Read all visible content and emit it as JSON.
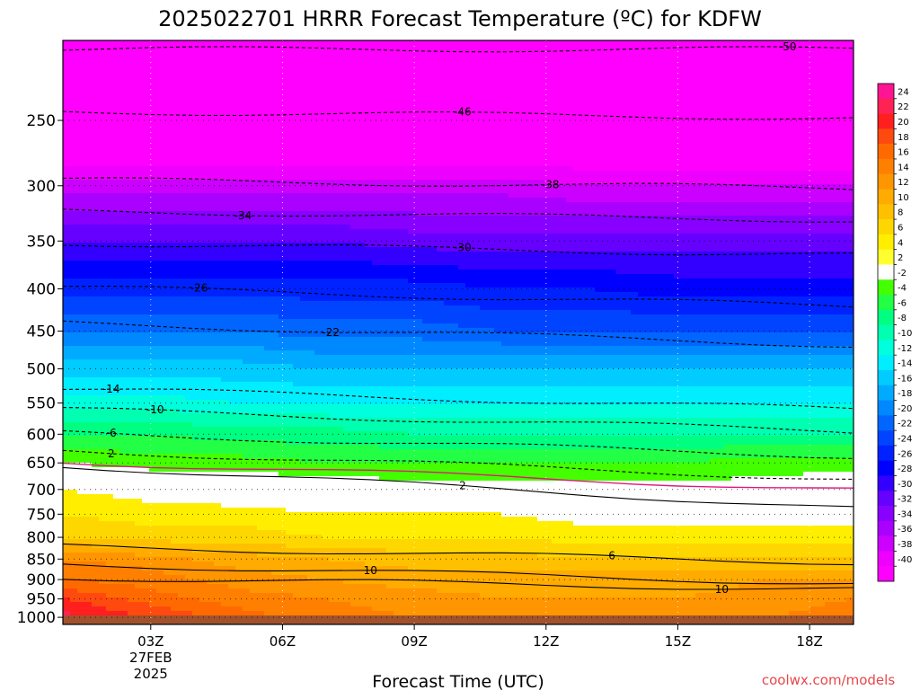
{
  "chart_data": {
    "type": "heatmap",
    "title": "2025022701 HRRR Forecast Temperature (ºC) for KDFW",
    "xlabel": "Forecast Time (UTC)",
    "ylabel": "",
    "x_hours": [
      1,
      19
    ],
    "x_ticks": [
      {
        "hour": 3,
        "lines": [
          "03Z",
          "27FEB",
          "2025"
        ]
      },
      {
        "hour": 6,
        "lines": [
          "06Z"
        ]
      },
      {
        "hour": 9,
        "lines": [
          "09Z"
        ]
      },
      {
        "hour": 12,
        "lines": [
          "12Z"
        ]
      },
      {
        "hour": 15,
        "lines": [
          "15Z"
        ]
      },
      {
        "hour": 18,
        "lines": [
          "18Z"
        ]
      }
    ],
    "y_scale": "log-pressure",
    "y_range_hpa": [
      1020,
      200
    ],
    "y_ticks": [
      "250",
      "300",
      "350",
      "400",
      "450",
      "500",
      "550",
      "600",
      "650",
      "700",
      "750",
      "800",
      "850",
      "900",
      "950",
      "1000"
    ],
    "grid": "dotted",
    "colorbar": {
      "placement": "right",
      "labels": [
        "24",
        "22",
        "20",
        "18",
        "16",
        "14",
        "12",
        "10",
        "8",
        "6",
        "4",
        "2",
        "-2",
        "-4",
        "-6",
        "-8",
        "-10",
        "-12",
        "-14",
        "-16",
        "-18",
        "-20",
        "-22",
        "-24",
        "-26",
        "-28",
        "-30",
        "-32",
        "-34",
        "-36",
        "-38",
        "-40"
      ],
      "colors": [
        "#ff1493",
        "#ff2255",
        "#ff1f1f",
        "#ff4a0f",
        "#ff6a00",
        "#ff8000",
        "#ff9500",
        "#ffab00",
        "#ffc000",
        "#ffd700",
        "#ffee00",
        "#ffff30",
        "#ffffff",
        "#44ff00",
        "#22ff44",
        "#00ff80",
        "#00ffb0",
        "#00ffdd",
        "#00eeff",
        "#00ccff",
        "#00aaff",
        "#0088ff",
        "#0066ff",
        "#0044ff",
        "#0022ff",
        "#0000ff",
        "#3300ff",
        "#6600ff",
        "#8800ff",
        "#aa00ff",
        "#cc00ff",
        "#ee00ff",
        "#ff00ff"
      ]
    },
    "ground_color": "#a0522d",
    "temperature_profile": [
      {
        "p": 1000,
        "t": [
          21,
          18,
          15,
          13,
          12,
          11,
          11,
          11,
          12,
          13
        ]
      },
      {
        "p": 950,
        "t": [
          18,
          15,
          13,
          12,
          11,
          10,
          10,
          10,
          11,
          12
        ]
      },
      {
        "p": 900,
        "t": [
          14,
          13,
          11,
          10,
          9,
          9,
          9,
          9,
          10,
          10
        ]
      },
      {
        "p": 850,
        "t": [
          12,
          11,
          9,
          8,
          7,
          7,
          6,
          6,
          6,
          6
        ]
      },
      {
        "p": 800,
        "t": [
          6,
          5,
          5,
          4,
          4,
          4,
          3,
          3,
          3,
          3
        ]
      },
      {
        "p": 750,
        "t": [
          4,
          3,
          3,
          2,
          2,
          2,
          1,
          1,
          1,
          1
        ]
      },
      {
        "p": 700,
        "t": [
          2,
          1,
          0,
          0,
          -1,
          -1,
          -1,
          -1,
          -1,
          0
        ]
      },
      {
        "p": 650,
        "t": [
          -2,
          -3,
          -3,
          -4,
          -4,
          -4,
          -4,
          -4,
          -3,
          -3
        ]
      },
      {
        "p": 600,
        "t": [
          -6,
          -6,
          -7,
          -7,
          -8,
          -8,
          -8,
          -8,
          -8,
          -8
        ]
      },
      {
        "p": 550,
        "t": [
          -11,
          -11,
          -12,
          -12,
          -12,
          -12,
          -12,
          -12,
          -12,
          -12
        ]
      },
      {
        "p": 500,
        "t": [
          -15,
          -15,
          -15,
          -16,
          -16,
          -16,
          -16,
          -16,
          -16,
          -16
        ]
      },
      {
        "p": 450,
        "t": [
          -20,
          -20,
          -20,
          -21,
          -21,
          -22,
          -22,
          -22,
          -22,
          -22
        ]
      },
      {
        "p": 400,
        "t": [
          -25,
          -25,
          -25,
          -25,
          -25,
          -26,
          -26,
          -27,
          -27,
          -27
        ]
      },
      {
        "p": 350,
        "t": [
          -30,
          -30,
          -30,
          -30,
          -31,
          -31,
          -31,
          -31,
          -31,
          -31
        ]
      },
      {
        "p": 300,
        "t": [
          -37,
          -37,
          -37,
          -37,
          -37,
          -37,
          -38,
          -38,
          -38,
          -38
        ]
      },
      {
        "p": 250,
        "t": [
          -46,
          -46,
          -46,
          -46,
          -46,
          -46,
          -46,
          -46,
          -46,
          -46
        ]
      },
      {
        "p": 200,
        "t": [
          -55,
          -55,
          -55,
          -55,
          -55,
          -55,
          -55,
          -55,
          -55,
          -55
        ]
      }
    ],
    "profile_hours": [
      1,
      3,
      5,
      7,
      9,
      11,
      13,
      15,
      17,
      19
    ],
    "contour_levels": [
      50,
      46,
      38,
      34,
      30,
      26,
      22,
      14,
      10,
      6,
      2,
      0
    ],
    "contours": [
      {
        "kind": "dashed",
        "label": "-50",
        "lhour": 17.5,
        "points": [
          [
            1,
            205
          ],
          [
            19,
            205
          ]
        ],
        "shifts": [
          0,
          0,
          0,
          0,
          0,
          0,
          0,
          0,
          0,
          0
        ]
      },
      {
        "kind": "dashed",
        "label": "-46",
        "lhour": 10.1,
        "points": [
          [
            1,
            244
          ],
          [
            19,
            248
          ]
        ],
        "shifts": [
          0,
          0,
          0,
          0,
          0,
          0,
          0,
          0,
          0,
          0
        ]
      },
      {
        "kind": "dashed",
        "label": "-38",
        "lhour": 12.1,
        "points": [
          [
            1,
            295
          ],
          [
            19,
            302
          ]
        ],
        "shifts": [
          0,
          0,
          0,
          0,
          0,
          0,
          0,
          0,
          0,
          0
        ]
      },
      {
        "kind": "dashed",
        "label": "-34",
        "lhour": 5.1,
        "points": [
          [
            1,
            322
          ],
          [
            19,
            330
          ]
        ],
        "shifts": [
          0,
          0,
          0,
          0,
          0,
          0,
          0,
          0,
          0,
          0
        ]
      },
      {
        "kind": "dashed",
        "label": "-30",
        "lhour": 10.1,
        "points": [
          [
            1,
            352
          ],
          [
            19,
            364
          ]
        ],
        "shifts": [
          0,
          0,
          0,
          0,
          0,
          0,
          0,
          0,
          0,
          0
        ]
      },
      {
        "kind": "dashed",
        "label": "-26",
        "lhour": 4.1,
        "points": [
          [
            1,
            398
          ],
          [
            19,
            420
          ]
        ],
        "shifts": [
          0,
          0,
          0,
          0,
          0,
          0,
          0,
          0,
          0,
          0
        ]
      },
      {
        "kind": "dashed",
        "label": "-22",
        "lhour": 7.1,
        "points": [
          [
            1,
            440
          ],
          [
            19,
            468
          ]
        ],
        "shifts": [
          0,
          0,
          0,
          0,
          0,
          0,
          0,
          0,
          0,
          0
        ]
      },
      {
        "kind": "dashed",
        "label": "-14",
        "lhour": 2.1,
        "points": [
          [
            1,
            528
          ],
          [
            19,
            560
          ]
        ],
        "shifts": [
          0,
          0,
          0,
          0,
          0,
          0,
          0,
          0,
          0,
          0
        ]
      },
      {
        "kind": "dashed",
        "label": "-10",
        "lhour": 3.1,
        "points": [
          [
            1,
            560
          ],
          [
            19,
            595
          ]
        ],
        "shifts": [
          0,
          0,
          0,
          0,
          0,
          0,
          0,
          0,
          0,
          0
        ]
      },
      {
        "kind": "dashed",
        "label": "-6",
        "lhour": 2.1,
        "points": [
          [
            1,
            598
          ],
          [
            19,
            638
          ]
        ],
        "shifts": [
          0,
          0,
          0,
          0,
          0,
          0,
          0,
          0,
          0,
          0
        ]
      },
      {
        "kind": "dashed",
        "label": "2",
        "lhour": 2.1,
        "points": [
          [
            1,
            628
          ],
          [
            19,
            680
          ]
        ],
        "shifts": [
          0,
          0,
          0,
          0,
          0,
          0,
          0,
          0,
          0,
          0
        ]
      },
      {
        "kind": "pink",
        "label": "",
        "lhour": 0,
        "points": [
          [
            1,
            648
          ],
          [
            19,
            700
          ]
        ],
        "shifts": [
          0,
          0,
          0,
          0,
          0,
          0,
          0,
          0,
          0,
          0
        ]
      },
      {
        "kind": "solid",
        "label": "2",
        "lhour": 10.1,
        "points": [
          [
            1,
            655
          ],
          [
            19,
            738
          ]
        ],
        "shifts": [
          0,
          0,
          0,
          0,
          0,
          0,
          0,
          0,
          0,
          0
        ]
      },
      {
        "kind": "solid",
        "label": "6",
        "lhour": 13.5,
        "points": [
          [
            1,
            820
          ],
          [
            19,
            858
          ]
        ],
        "shifts": [
          0,
          0,
          0,
          0,
          0,
          0,
          0,
          0,
          0,
          0
        ]
      },
      {
        "kind": "solid",
        "label": "10",
        "lhour": 8.0,
        "points": [
          [
            1,
            862
          ],
          [
            19,
            910
          ]
        ],
        "shifts": [
          0,
          0,
          0,
          0,
          0,
          0,
          0,
          0,
          0,
          0
        ]
      },
      {
        "kind": "solid",
        "label": "10",
        "lhour": 16.0,
        "points": [
          [
            1,
            895
          ],
          [
            19,
            925
          ]
        ],
        "shifts": [
          0,
          0,
          0,
          0,
          0,
          0,
          0,
          0,
          0,
          0
        ]
      }
    ]
  },
  "credit": "coolwx.com/models"
}
